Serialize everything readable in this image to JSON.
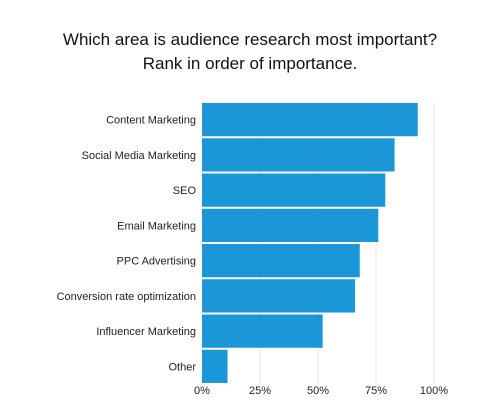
{
  "chart_data": {
    "type": "bar",
    "orientation": "horizontal",
    "title": [
      "Which area is audience research most important?",
      "Rank in order of importance."
    ],
    "categories": [
      "Content Marketing",
      "Social Media Marketing",
      "SEO",
      "Email Marketing",
      "PPC Advertising",
      "Conversion rate optimization",
      "Influencer Marketing",
      "Other"
    ],
    "values": [
      93,
      83,
      79,
      76,
      68,
      66,
      52,
      11
    ],
    "xlim": [
      0,
      100
    ],
    "xticks": [
      "0%",
      "25%",
      "50%",
      "75%",
      "100%"
    ],
    "xtick_values": [
      0,
      25,
      50,
      75,
      100
    ],
    "grid": "vertical",
    "bar_color": "#1b96d6",
    "grid_color": "#e6e6e6"
  }
}
